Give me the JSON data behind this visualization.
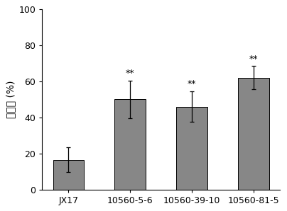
{
  "categories": [
    "JX17",
    "10560-5-6",
    "10560-39-10",
    "10560-81-5"
  ],
  "values": [
    16.5,
    50.0,
    46.0,
    62.0
  ],
  "errors": [
    7.0,
    10.5,
    8.5,
    6.5
  ],
  "bar_color": "#878787",
  "ylabel": "存活率 (%)",
  "ylim": [
    0,
    100
  ],
  "yticks": [
    0,
    20,
    40,
    60,
    80,
    100
  ],
  "significance": [
    "",
    "**",
    "**",
    "**"
  ],
  "sig_fontsize": 9,
  "tick_fontsize": 9,
  "ylabel_fontsize": 10
}
